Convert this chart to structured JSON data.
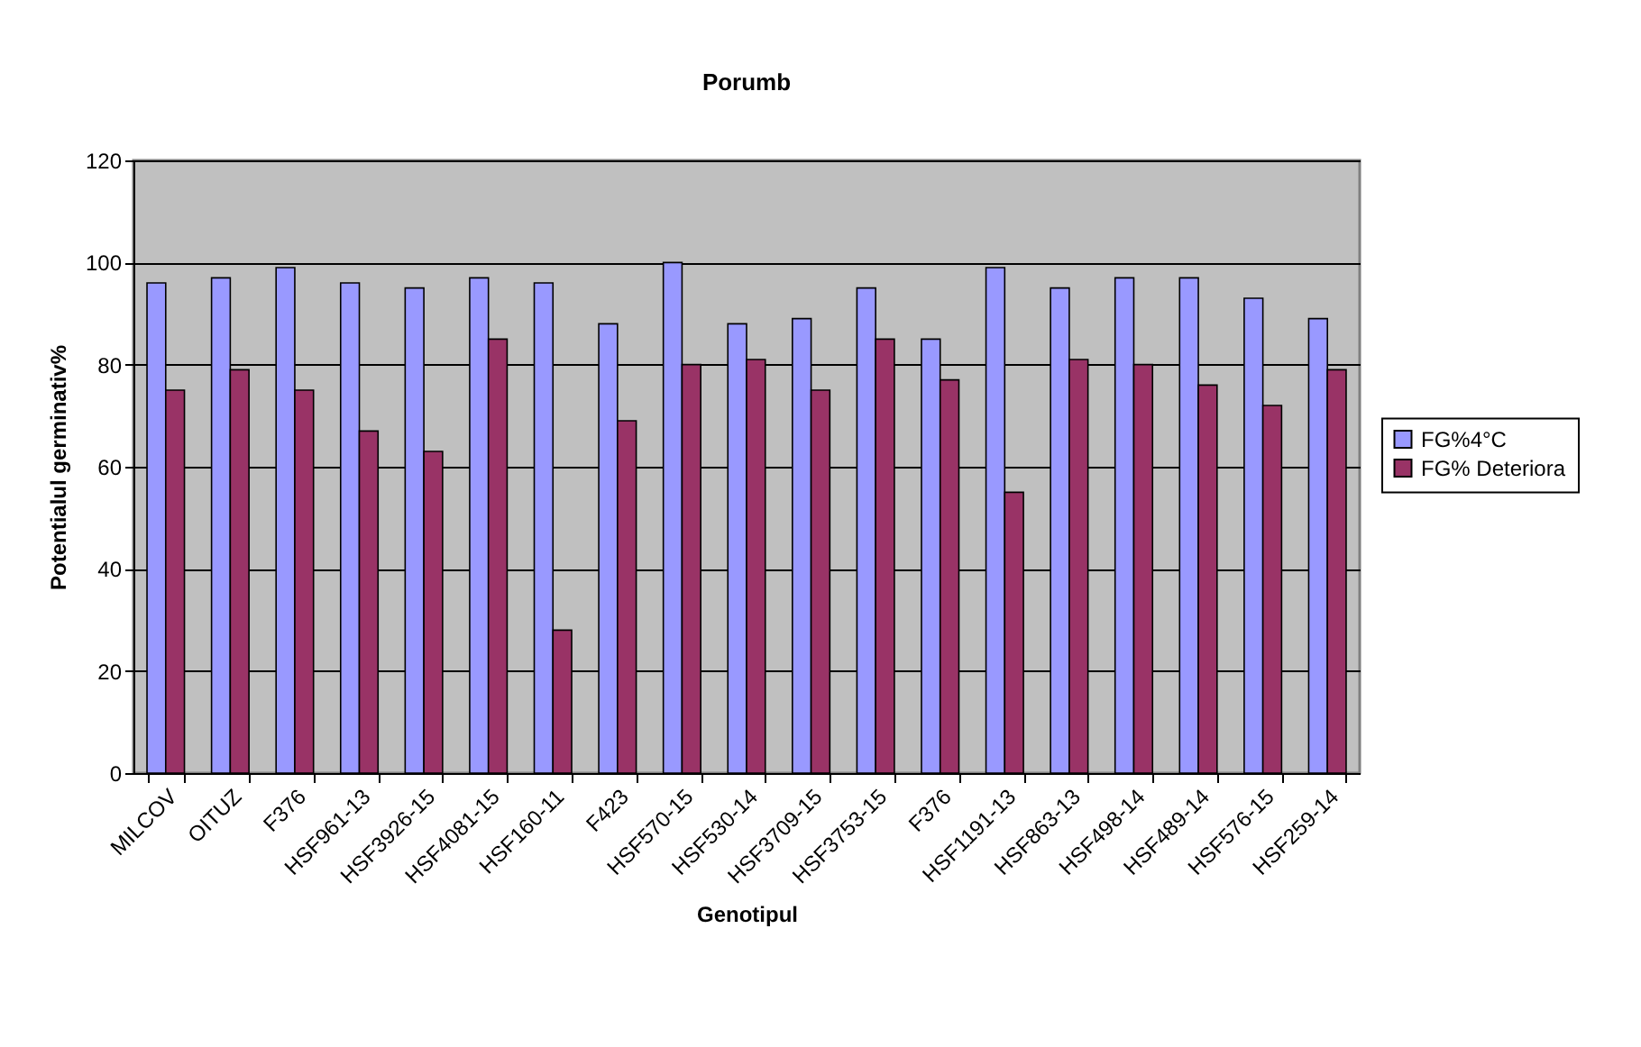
{
  "chart_data": {
    "type": "bar",
    "title": "Porumb",
    "xlabel": "Genotipul",
    "ylabel": "Potentialul germinativ%",
    "categories": [
      "MILCOV",
      "OITUZ",
      "F376",
      "HSF961-13",
      "HSF3926-15",
      "HSF4081-15",
      "HSF160-11",
      "F423",
      "HSF570-15",
      "HSF530-14",
      "HSF3709-15",
      "HSF3753-15",
      "F376",
      "HSF1191-13",
      "HSF863-13",
      "HSF498-14",
      "HSF489-14",
      "HSF576-15",
      "HSF259-14"
    ],
    "series": [
      {
        "name": "FG%4°C",
        "color": "#9999ff",
        "values": [
          96,
          97,
          99,
          96,
          95,
          97,
          96,
          88,
          100,
          88,
          89,
          95,
          85,
          99,
          95,
          97,
          97,
          93,
          89
        ]
      },
      {
        "name": "FG% Deteriora",
        "color": "#993366",
        "values": [
          75,
          79,
          75,
          67,
          63,
          85,
          28,
          69,
          80,
          81,
          75,
          85,
          77,
          55,
          81,
          80,
          76,
          72,
          79
        ]
      }
    ],
    "ylim": [
      0,
      120
    ],
    "yticks": [
      0,
      20,
      40,
      60,
      80,
      100,
      120
    ],
    "grid": "y",
    "legend": "right"
  }
}
